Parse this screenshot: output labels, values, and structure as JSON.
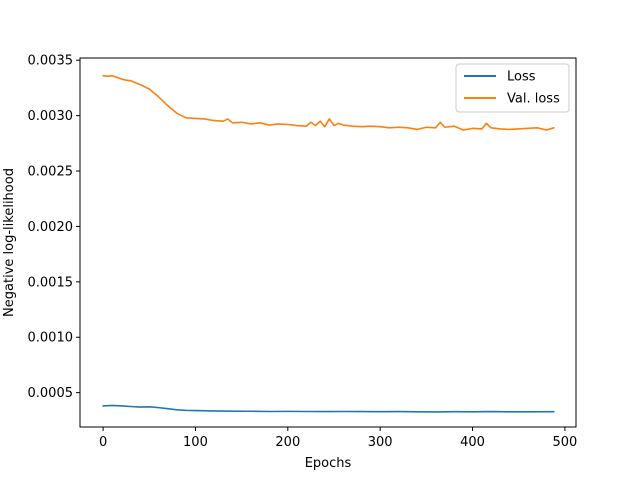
{
  "chart_data": {
    "type": "line",
    "title": "",
    "xlabel": "Epochs",
    "ylabel": "Negative log-likelihood",
    "xlim": [
      -25,
      512
    ],
    "ylim": [
      0.00019,
      0.00352
    ],
    "xticks": [
      0,
      100,
      200,
      300,
      400,
      500
    ],
    "xtick_labels": [
      "0",
      "100",
      "200",
      "300",
      "400",
      "500"
    ],
    "yticks": [
      0.0005,
      0.001,
      0.0015,
      0.002,
      0.0025,
      0.003,
      0.0035
    ],
    "ytick_labels": [
      "0.0005",
      "0.0010",
      "0.0015",
      "0.0020",
      "0.0025",
      "0.0030",
      "0.0035"
    ],
    "grid": false,
    "legend_position": "top-right",
    "series": [
      {
        "name": "Loss",
        "color": "#1f77b4",
        "x": [
          0,
          10,
          20,
          30,
          40,
          50,
          60,
          70,
          80,
          90,
          100,
          120,
          140,
          160,
          180,
          200,
          220,
          240,
          260,
          280,
          300,
          320,
          340,
          360,
          380,
          400,
          420,
          440,
          460,
          488
        ],
        "y": [
          0.00038,
          0.000385,
          0.00038,
          0.000375,
          0.00037,
          0.000372,
          0.000365,
          0.000355,
          0.000345,
          0.00034,
          0.000338,
          0.000335,
          0.000333,
          0.000332,
          0.00033,
          0.000331,
          0.00033,
          0.000329,
          0.00033,
          0.000329,
          0.000328,
          0.000329,
          0.000327,
          0.000326,
          0.000328,
          0.000327,
          0.000329,
          0.000327,
          0.000327,
          0.000328
        ]
      },
      {
        "name": "Val. loss",
        "color": "#ff7f0e",
        "x": [
          0,
          5,
          10,
          15,
          20,
          25,
          30,
          40,
          50,
          60,
          70,
          80,
          90,
          100,
          110,
          120,
          130,
          135,
          140,
          150,
          160,
          170,
          180,
          190,
          200,
          210,
          220,
          225,
          230,
          235,
          240,
          245,
          250,
          255,
          260,
          270,
          280,
          290,
          300,
          310,
          320,
          330,
          340,
          350,
          360,
          365,
          370,
          380,
          390,
          400,
          410,
          415,
          420,
          430,
          440,
          450,
          460,
          470,
          480,
          488
        ],
        "y": [
          0.00336,
          0.003355,
          0.00336,
          0.003345,
          0.00333,
          0.00332,
          0.003315,
          0.00328,
          0.00324,
          0.00317,
          0.00309,
          0.00302,
          0.00298,
          0.002975,
          0.00297,
          0.002955,
          0.00295,
          0.00297,
          0.002935,
          0.00294,
          0.002925,
          0.002935,
          0.002915,
          0.002925,
          0.00292,
          0.00291,
          0.002905,
          0.00294,
          0.00291,
          0.00295,
          0.0029,
          0.00297,
          0.00291,
          0.00293,
          0.002915,
          0.002905,
          0.0029,
          0.002905,
          0.0029,
          0.00289,
          0.002895,
          0.00289,
          0.002875,
          0.002895,
          0.00289,
          0.00294,
          0.002895,
          0.002905,
          0.00287,
          0.002885,
          0.00288,
          0.00293,
          0.00289,
          0.00288,
          0.002875,
          0.00288,
          0.002885,
          0.00289,
          0.00287,
          0.00289
        ]
      }
    ]
  }
}
